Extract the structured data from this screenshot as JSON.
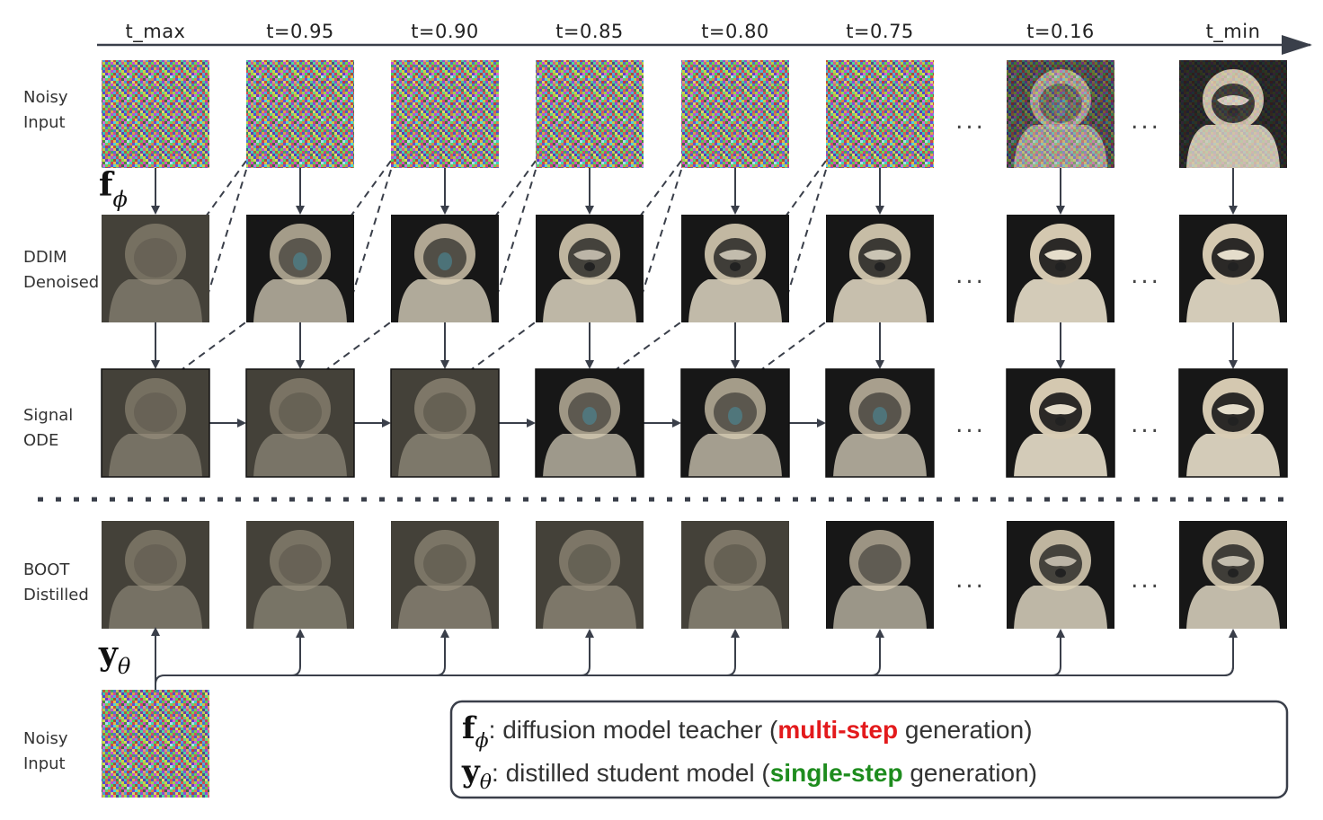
{
  "timesteps": [
    "t_max",
    "t=0.95",
    "t=0.90",
    "t=0.85",
    "t=0.80",
    "t=0.75",
    "t=0.16",
    "t_min"
  ],
  "ellipsis": "...",
  "rows": {
    "noisy_input": [
      "Noisy",
      "Input"
    ],
    "ddim_denoised": [
      "DDIM",
      "Denoised"
    ],
    "signal_ode": [
      "Signal",
      "ODE"
    ],
    "boot_distilled": [
      "BOOT",
      "Distilled"
    ],
    "student_input": [
      "Noisy",
      "Input"
    ]
  },
  "symbols": {
    "teacher": {
      "main": "f",
      "sub": "ϕ"
    },
    "student": {
      "main": "y",
      "sub": "θ"
    }
  },
  "legend": {
    "teacher": {
      "symbol": "f",
      "sub": "ϕ",
      "pre": ": diffusion model teacher (",
      "highlight": "multi-step",
      "post": " generation)"
    },
    "student": {
      "symbol": "y",
      "sub": "θ",
      "pre": ": distilled student model (",
      "highlight": "single-step",
      "post": " generation)"
    }
  },
  "colors": {
    "arrow": "#3a3f4a",
    "multi_step": "#e31a1c",
    "single_step": "#1e8c1e",
    "helmet": "#d9cdb4",
    "suit": "#d8d0bc",
    "background_dark": "#171717"
  }
}
